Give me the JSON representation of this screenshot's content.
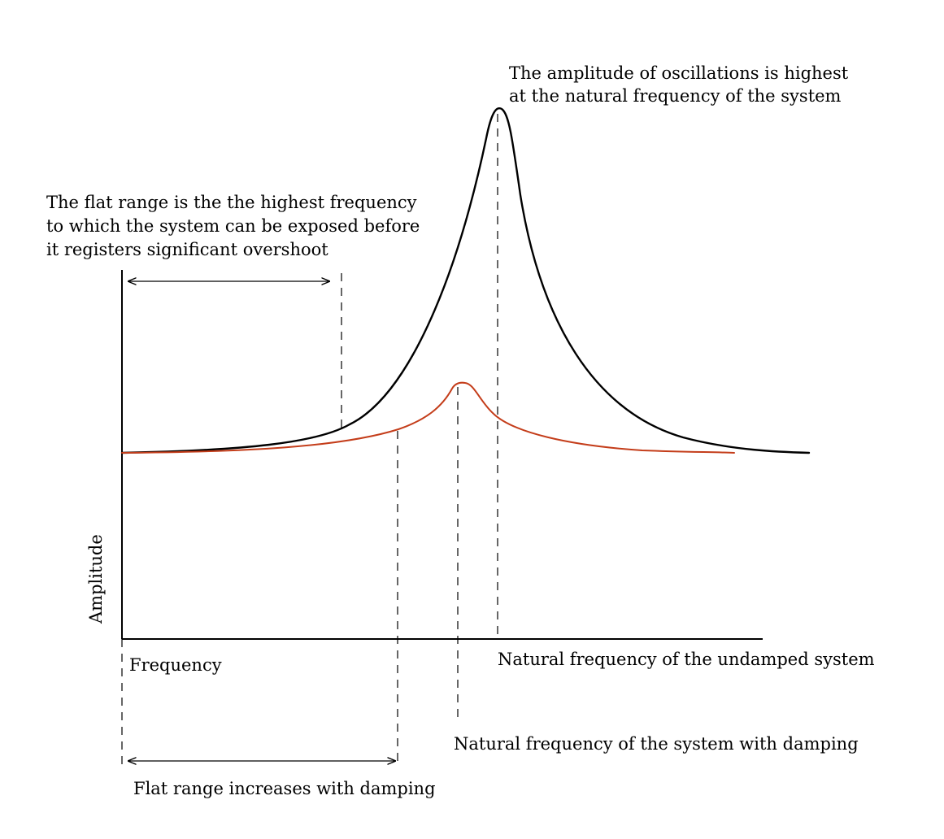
{
  "annotations": {
    "peak_line1": "The amplitude of oscillations is highest",
    "peak_line2": "at the natural frequency of the system",
    "flat_line1": "The flat range is the the highest frequency",
    "flat_line2": "to which the system can be exposed before",
    "flat_line3": "it registers significant overshoot",
    "undamped_label": "Natural frequency of the undamped system",
    "damped_label": "Natural frequency of the system with damping",
    "flat_increase_label": "Flat range increases with damping"
  },
  "axes": {
    "y_label": "Amplitude",
    "x_label": "Frequency"
  },
  "curves": {
    "undamped": {
      "color": "#000000"
    },
    "damped": {
      "color": "#c43d1a"
    }
  }
}
